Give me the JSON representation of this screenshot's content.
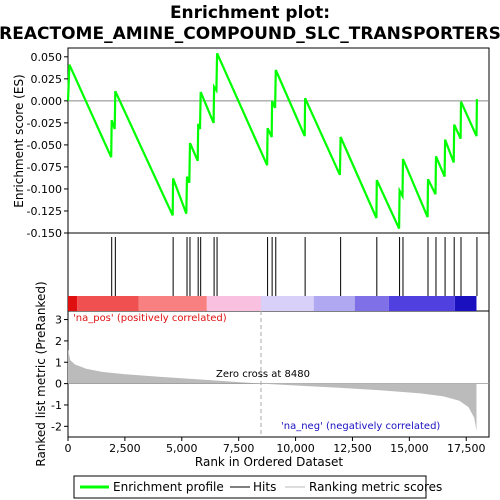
{
  "title_line1": "Enrichment plot:",
  "title_line2": "REACTOME_AMINE_COMPOUND_SLC_TRANSPORTERS",
  "chart_data": {
    "type": "line",
    "x_range": [
      0,
      18500
    ],
    "x_ticks": [
      0,
      2500,
      5000,
      7500,
      10000,
      12500,
      15000,
      17500
    ],
    "x_tick_labels": [
      "0",
      "2,500",
      "5,000",
      "7,500",
      "10,000",
      "12,500",
      "15,000",
      "17,500"
    ],
    "xlabel": "Rank in Ordered Dataset",
    "es_panel": {
      "ylabel": "Enrichment score (ES)",
      "ylim": [
        -0.15,
        0.06
      ],
      "y_ticks": [
        0.05,
        0.025,
        0.0,
        -0.025,
        -0.05,
        -0.075,
        -0.1,
        -0.125,
        -0.15
      ],
      "y_tick_labels": [
        "0.050",
        "0.025",
        "0.000",
        "-0.025",
        "-0.050",
        "-0.075",
        "-0.100",
        "-0.125",
        "-0.150"
      ],
      "series_name": "Enrichment profile",
      "color": "#00ff00",
      "points": [
        [
          0,
          0.0
        ],
        [
          60,
          0.041
        ],
        [
          1900,
          -0.064
        ],
        [
          1920,
          -0.022
        ],
        [
          2050,
          -0.032
        ],
        [
          2080,
          0.011
        ],
        [
          4600,
          -0.13
        ],
        [
          4620,
          -0.088
        ],
        [
          5200,
          -0.128
        ],
        [
          5230,
          -0.086
        ],
        [
          5330,
          -0.093
        ],
        [
          5360,
          -0.048
        ],
        [
          5700,
          -0.068
        ],
        [
          5720,
          -0.026
        ],
        [
          5800,
          -0.032
        ],
        [
          5830,
          0.01
        ],
        [
          6400,
          -0.025
        ],
        [
          6420,
          0.016
        ],
        [
          6520,
          0.012
        ],
        [
          6550,
          0.054
        ],
        [
          8750,
          -0.073
        ],
        [
          8770,
          -0.031
        ],
        [
          8950,
          -0.041
        ],
        [
          8970,
          0.0
        ],
        [
          9100,
          -0.008
        ],
        [
          9130,
          0.035
        ],
        [
          10400,
          -0.04
        ],
        [
          10420,
          0.003
        ],
        [
          11950,
          -0.084
        ],
        [
          11980,
          -0.041
        ],
        [
          13550,
          -0.133
        ],
        [
          13570,
          -0.09
        ],
        [
          14550,
          -0.145
        ],
        [
          14570,
          -0.102
        ],
        [
          14700,
          -0.108
        ],
        [
          14720,
          -0.066
        ],
        [
          15800,
          -0.132
        ],
        [
          15820,
          -0.089
        ],
        [
          16150,
          -0.106
        ],
        [
          16170,
          -0.063
        ],
        [
          16550,
          -0.086
        ],
        [
          16570,
          -0.044
        ],
        [
          16950,
          -0.07
        ],
        [
          16970,
          -0.027
        ],
        [
          17250,
          -0.043
        ],
        [
          17270,
          -0.001
        ],
        [
          17950,
          -0.04
        ],
        [
          17970,
          0.002
        ]
      ]
    },
    "hits": [
      1920,
      2080,
      4620,
      5230,
      5360,
      5720,
      5830,
      6420,
      6550,
      8770,
      8970,
      9130,
      10420,
      11980,
      13570,
      14570,
      14720,
      15820,
      16170,
      16570,
      16970,
      17270,
      17970
    ],
    "color_bar": {
      "segments": [
        {
          "from": 0,
          "to": 400,
          "color": "#e01010"
        },
        {
          "from": 400,
          "to": 3100,
          "color": "#f05050"
        },
        {
          "from": 3100,
          "to": 6100,
          "color": "#f88080"
        },
        {
          "from": 6100,
          "to": 8480,
          "color": "#fac0e0"
        },
        {
          "from": 8480,
          "to": 10800,
          "color": "#d8d0f8"
        },
        {
          "from": 10800,
          "to": 12600,
          "color": "#b0a8f0"
        },
        {
          "from": 12600,
          "to": 14100,
          "color": "#8070e8"
        },
        {
          "from": 14100,
          "to": 17000,
          "color": "#5040e0"
        },
        {
          "from": 17000,
          "to": 17950,
          "color": "#1a10c0"
        }
      ]
    },
    "metric_panel": {
      "ylabel": "Ranked list metric (PreRanked)",
      "ylim": [
        -2.5,
        3.4
      ],
      "y_ticks": [
        3,
        2,
        1,
        0,
        -1,
        -2
      ],
      "y_tick_labels": [
        "3",
        "2",
        "1",
        "0",
        "-1",
        "-2"
      ],
      "series_name": "Ranking metric scores",
      "color": "#bbbbbb",
      "points": [
        [
          0,
          1.6
        ],
        [
          100,
          1.1
        ],
        [
          300,
          0.9
        ],
        [
          800,
          0.7
        ],
        [
          1500,
          0.55
        ],
        [
          2500,
          0.44
        ],
        [
          4000,
          0.32
        ],
        [
          6000,
          0.18
        ],
        [
          8480,
          0.0
        ],
        [
          10000,
          -0.09
        ],
        [
          12000,
          -0.2
        ],
        [
          14000,
          -0.33
        ],
        [
          15500,
          -0.46
        ],
        [
          16500,
          -0.6
        ],
        [
          17200,
          -0.8
        ],
        [
          17600,
          -1.1
        ],
        [
          17850,
          -1.6
        ],
        [
          17950,
          -2.2
        ]
      ],
      "zero_cross_label": "Zero cross at 8480",
      "zero_cross_x": 8480,
      "pos_label": "'na_pos' (positively correlated)",
      "neg_label": "'na_neg' (negatively correlated)",
      "pos_color": "#e01010",
      "neg_color": "#1a10c0"
    },
    "legend": {
      "placement": "bottom",
      "items": [
        {
          "label": "Enrichment profile",
          "color": "#00ff00"
        },
        {
          "label": "Hits",
          "color": "#000000"
        },
        {
          "label": "Ranking metric scores",
          "color": "#bbbbbb"
        }
      ]
    }
  }
}
